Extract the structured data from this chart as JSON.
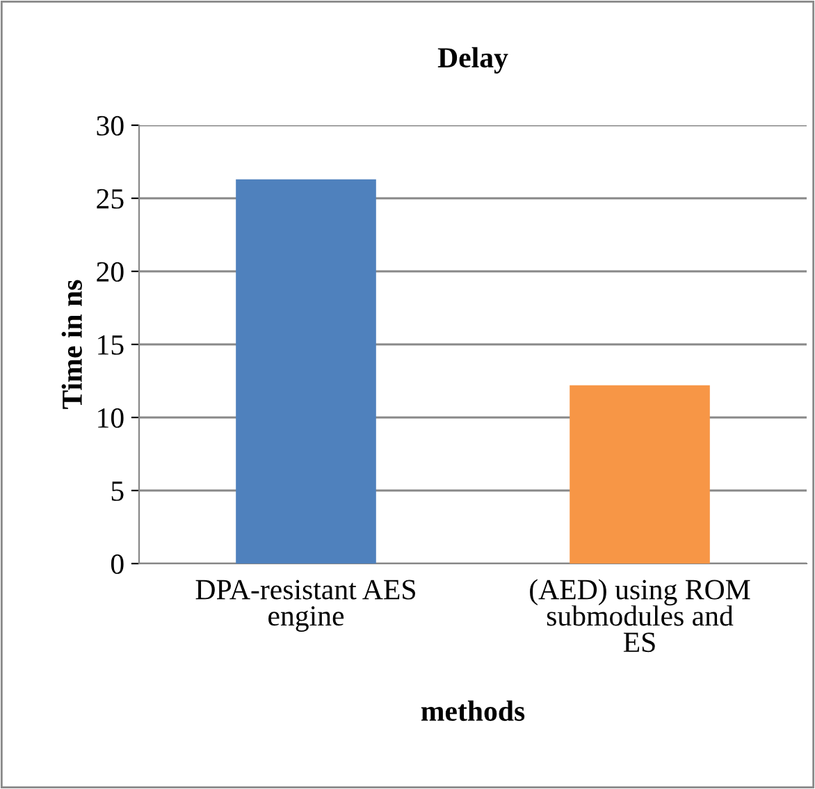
{
  "chart_data": {
    "type": "bar",
    "title": "Delay",
    "xlabel": "methods",
    "ylabel": "Time in ns",
    "categories": [
      "DPA-resistant AES\nengine",
      "(AED) using ROM\nsubmodules and\nES"
    ],
    "series": [
      {
        "colors": [
          "#4f81bd",
          "#f79646"
        ],
        "values": [
          26.3,
          12.2
        ]
      }
    ],
    "ylim": [
      0,
      30
    ],
    "yticks": [
      0,
      5,
      10,
      15,
      20,
      25,
      30
    ],
    "grid": "y",
    "legend": false
  }
}
